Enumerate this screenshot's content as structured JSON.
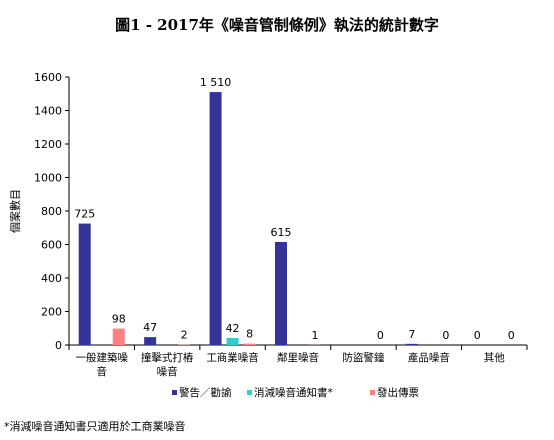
{
  "chart_data": {
    "type": "bar",
    "title": "圖1 - 2017年《噪音管制條例》執法的統計數字",
    "ylabel": "個案數目",
    "xlabel": "",
    "ylim": [
      0,
      1600
    ],
    "yticks": [
      0,
      200,
      400,
      600,
      800,
      1000,
      1200,
      1400,
      1600
    ],
    "grid": false,
    "legend_position": "bottom",
    "categories": [
      [
        "一般建築噪",
        "音"
      ],
      [
        "撞擊式打樁",
        "噪音"
      ],
      [
        "工商業噪音"
      ],
      [
        "鄰里噪音"
      ],
      [
        "防盜警鐘"
      ],
      [
        "產品噪音"
      ],
      [
        "其他"
      ]
    ],
    "series": [
      {
        "name": "警告／勸諭",
        "color": "#333399",
        "values": [
          725,
          47,
          1510,
          615,
          null,
          7,
          0
        ],
        "labels": [
          "725",
          "47",
          "1 510",
          "615",
          "",
          "7",
          "0"
        ]
      },
      {
        "name": "消減噪音通知書*",
        "color": "#33cccc",
        "values": [
          null,
          null,
          42,
          null,
          null,
          null,
          null
        ],
        "labels": [
          "",
          "",
          "42",
          "",
          "",
          "",
          ""
        ]
      },
      {
        "name": "發出傳票",
        "color": "#ff8080",
        "values": [
          98,
          2,
          8,
          1,
          0,
          0,
          0
        ],
        "labels": [
          "98",
          "2",
          "8",
          "1",
          "0",
          "0",
          "0"
        ]
      }
    ]
  },
  "footnote": "*消減噪音通知書只適用於工商業噪音"
}
